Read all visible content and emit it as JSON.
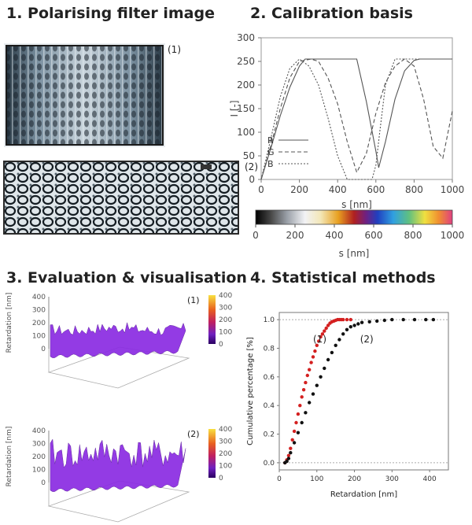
{
  "panel1": {
    "heading": "1. Polarising filter image",
    "label_1": "(1)",
    "label_2": "(2)"
  },
  "panel2": {
    "heading": "2. Calibration basis",
    "colorbar_ticks": [
      "0",
      "200",
      "400",
      "600",
      "800",
      "1000"
    ],
    "colorbar_xlabel": "s [nm]"
  },
  "panel3": {
    "heading": "3. Evaluation & visualisation",
    "plot1": {
      "zlabel": "Retardation [nm]",
      "z_ticks": [
        "400",
        "300",
        "200",
        "100",
        "0"
      ],
      "cbar_ticks": [
        "400",
        "300",
        "200",
        "100",
        "0"
      ],
      "label": "(1)"
    },
    "plot2": {
      "zlabel": "Retardation [nm]",
      "z_ticks": [
        "400",
        "300",
        "200",
        "100",
        "0"
      ],
      "cbar_ticks": [
        "400",
        "300",
        "200",
        "100",
        "0"
      ],
      "label": "(2)"
    }
  },
  "panel4": {
    "heading": "4. Statistical methods",
    "label_1": "(1)",
    "label_2": "(2)"
  },
  "colors": {
    "sample1": "#d42020",
    "sample2": "#111111",
    "surface": "#8a2be2"
  },
  "chart_data": [
    {
      "type": "line",
      "xlabel": "s [nm]",
      "ylabel": "I [-]",
      "xlim": [
        0,
        1000
      ],
      "ylim": [
        0,
        300
      ],
      "xticks": [
        "0",
        "200",
        "400",
        "600",
        "800",
        "1000"
      ],
      "yticks": [
        "0",
        "50",
        "100",
        "150",
        "200",
        "250",
        "300"
      ],
      "legend_position": "bottom-left",
      "series": [
        {
          "name": "R",
          "style": "solid",
          "x": [
            0,
            50,
            100,
            150,
            200,
            230,
            250,
            300,
            350,
            400,
            450,
            500,
            550,
            600,
            615,
            650,
            700,
            750,
            800,
            830,
            850,
            900,
            950,
            1000
          ],
          "y": [
            0,
            65,
            135,
            195,
            240,
            255,
            255,
            255,
            255,
            255,
            255,
            255,
            165,
            60,
            25,
            80,
            170,
            230,
            252,
            255,
            255,
            255,
            255,
            255
          ]
        },
        {
          "name": "G",
          "style": "dashed",
          "x": [
            0,
            50,
            100,
            150,
            200,
            260,
            300,
            350,
            400,
            450,
            500,
            550,
            600,
            650,
            700,
            750,
            800,
            850,
            900,
            950,
            1000
          ],
          "y": [
            0,
            70,
            150,
            215,
            250,
            255,
            250,
            215,
            160,
            80,
            15,
            55,
            140,
            205,
            240,
            255,
            240,
            170,
            70,
            45,
            145
          ]
        },
        {
          "name": "B",
          "style": "dotted",
          "x": [
            0,
            50,
            100,
            150,
            200,
            250,
            300,
            350,
            400,
            450,
            500,
            550,
            580,
            600,
            620,
            650,
            700,
            800,
            900,
            1000
          ],
          "y": [
            0,
            85,
            175,
            235,
            255,
            240,
            200,
            130,
            50,
            0,
            0,
            0,
            0,
            30,
            100,
            200,
            255,
            255,
            255,
            255
          ]
        }
      ]
    },
    {
      "type": "scatter",
      "xlabel": "Retardation [nm]",
      "ylabel": "Cumulative percentage [%]",
      "xlim": [
        0,
        450
      ],
      "ylim": [
        -0.05,
        1.05
      ],
      "xticks": [
        "0",
        "100",
        "200",
        "300",
        "400"
      ],
      "yticks": [
        "0.0",
        "0.2",
        "0.4",
        "0.6",
        "0.8",
        "1.0"
      ],
      "series": [
        {
          "label": "(1)",
          "x": [
            15,
            20,
            25,
            30,
            35,
            40,
            45,
            50,
            55,
            60,
            65,
            70,
            75,
            80,
            85,
            90,
            95,
            100,
            105,
            110,
            115,
            120,
            125,
            130,
            135,
            140,
            145,
            150,
            155,
            160,
            165,
            170,
            180,
            190
          ],
          "y": [
            0.0,
            0.02,
            0.05,
            0.1,
            0.16,
            0.22,
            0.28,
            0.34,
            0.4,
            0.46,
            0.51,
            0.56,
            0.61,
            0.65,
            0.7,
            0.74,
            0.78,
            0.82,
            0.85,
            0.88,
            0.9,
            0.92,
            0.94,
            0.96,
            0.975,
            0.985,
            0.99,
            0.995,
            1.0,
            1.0,
            1.0,
            1.0,
            1.0,
            1.0
          ]
        },
        {
          "label": "(2)",
          "x": [
            15,
            20,
            25,
            30,
            40,
            50,
            60,
            70,
            80,
            90,
            100,
            110,
            120,
            130,
            140,
            150,
            160,
            170,
            180,
            190,
            200,
            210,
            220,
            240,
            260,
            280,
            300,
            330,
            360,
            390,
            410
          ],
          "y": [
            0.0,
            0.01,
            0.03,
            0.07,
            0.14,
            0.21,
            0.28,
            0.35,
            0.42,
            0.48,
            0.54,
            0.6,
            0.66,
            0.72,
            0.77,
            0.82,
            0.86,
            0.9,
            0.93,
            0.95,
            0.96,
            0.97,
            0.98,
            0.985,
            0.99,
            0.995,
            1.0,
            1.0,
            1.0,
            1.0,
            1.0
          ]
        }
      ]
    }
  ]
}
